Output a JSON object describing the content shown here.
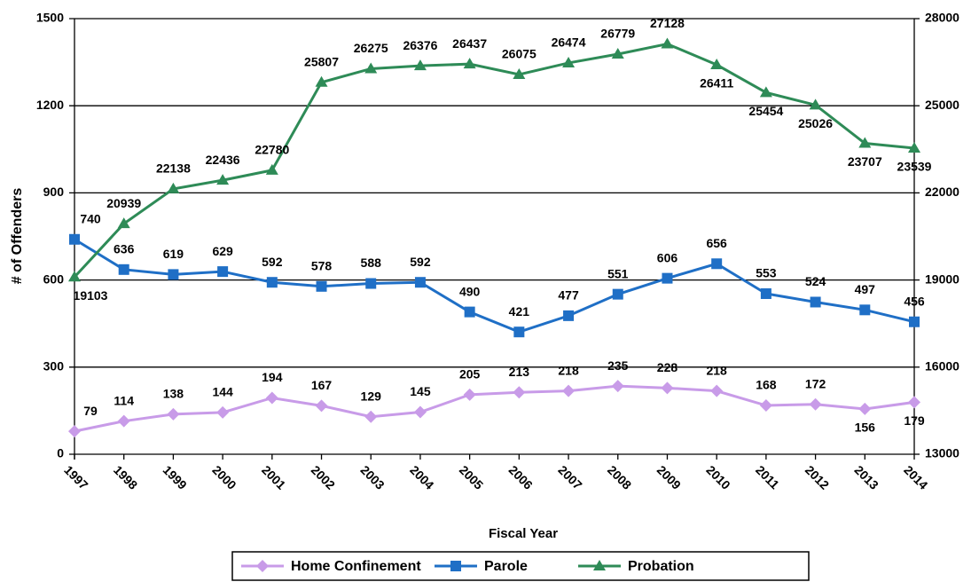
{
  "chart_data": {
    "type": "line",
    "x_label": "Fiscal Year",
    "y_label": "# of Offenders",
    "categories": [
      "1997",
      "1998",
      "1999",
      "2000",
      "2001",
      "2002",
      "2003",
      "2004",
      "2005",
      "2006",
      "2007",
      "2008",
      "2009",
      "2010",
      "2011",
      "2012",
      "2013",
      "2014"
    ],
    "ylim": [
      0,
      1500
    ],
    "yticks": [
      0,
      300,
      600,
      900,
      1200,
      1500
    ],
    "y2lim": [
      13000,
      28000
    ],
    "y2ticks": [
      13000,
      16000,
      19000,
      22000,
      25000,
      28000
    ],
    "grid": true,
    "legend": "bottom",
    "series": [
      {
        "name": "Home Confinement",
        "color": "#c89be8",
        "marker": "diamond",
        "values": [
          79,
          114,
          138,
          144,
          194,
          167,
          129,
          145,
          205,
          213,
          218,
          235,
          228,
          218,
          168,
          172,
          156,
          179
        ]
      },
      {
        "name": "Parole",
        "color": "#1f6fc6",
        "marker": "square",
        "values": [
          740,
          636,
          619,
          629,
          592,
          578,
          588,
          592,
          490,
          421,
          477,
          551,
          606,
          656,
          553,
          524,
          497,
          456
        ]
      },
      {
        "name": "Probation",
        "color": "#2e8b57",
        "marker": "triangle",
        "axis": "y2",
        "values": [
          19103,
          20939,
          22138,
          22436,
          22780,
          25807,
          26275,
          26376,
          26437,
          26075,
          26474,
          26779,
          27128,
          26411,
          25454,
          25026,
          23707,
          23539
        ]
      }
    ]
  }
}
